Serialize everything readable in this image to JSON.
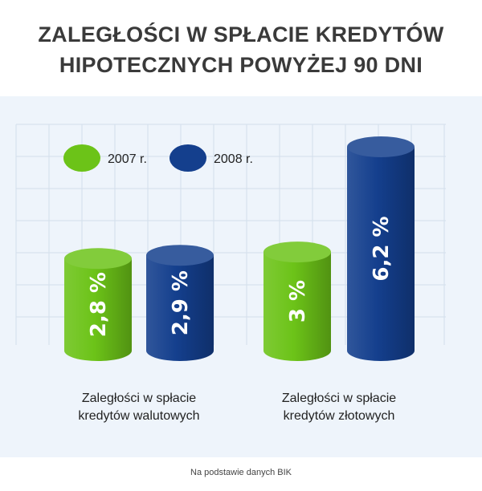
{
  "title_line1": "ZALEGŁOŚCI W SPŁACIE KREDYTÓW",
  "title_line2": "HIPOTECZNYCH POWYŻEJ 90 DNI",
  "source": "Na podstawie danych BIK",
  "chart_data": {
    "type": "bar",
    "style": "3d-cylinder",
    "grid": true,
    "legend_position": "top-left",
    "categories": [
      [
        "Zaległości w spłacie",
        "kredytów walutowych"
      ],
      [
        "Zaległości w spłacie",
        "kredytów złotowych"
      ]
    ],
    "series": [
      {
        "name": "2007 r.",
        "color": "#6cc318",
        "values": [
          2.8,
          3
        ],
        "labels": [
          "2,8 %",
          "3 %"
        ]
      },
      {
        "name": "2008 r.",
        "color": "#143f8d",
        "values": [
          2.9,
          6.2
        ],
        "labels": [
          "2,9 %",
          "6,2 %"
        ]
      }
    ],
    "ylim": [
      0,
      6.8
    ]
  }
}
